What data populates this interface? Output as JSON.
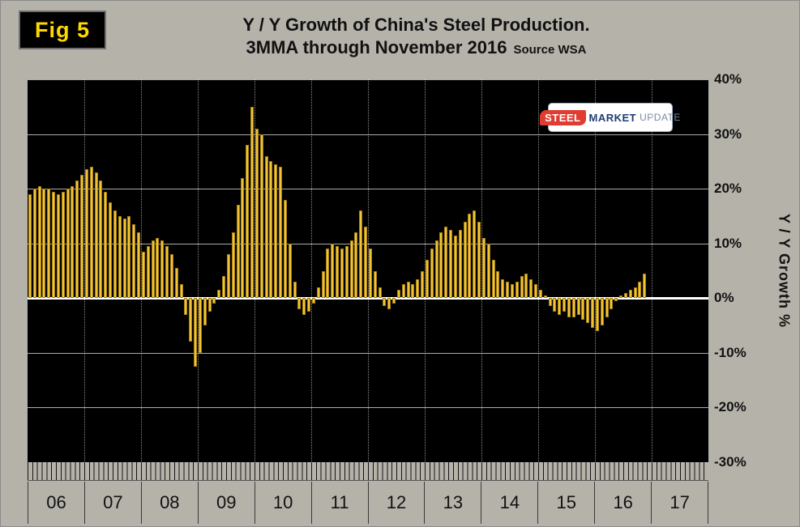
{
  "fig_label": "Fig 5",
  "title": {
    "line1": "Y / Y Growth of China's Steel Production.",
    "line2": "3MMA through November 2016",
    "source": "Source WSA"
  },
  "logo": {
    "steel": "STEEL",
    "market": "MARKET",
    "update": "UPDATE"
  },
  "chart_data": {
    "type": "bar",
    "title": "Y / Y Growth of China's Steel Production.",
    "subtitle": "3MMA through November 2016",
    "source": "Source WSA",
    "ylabel": "Y / Y Growth %",
    "ylim": [
      -30,
      40
    ],
    "ytick_step": 10,
    "yticks": [
      "40%",
      "30%",
      "20%",
      "10%",
      "0%",
      "-10%",
      "-20%",
      "-30%"
    ],
    "x_years": [
      "06",
      "07",
      "08",
      "09",
      "10",
      "11",
      "12",
      "13",
      "14",
      "15",
      "16",
      "17"
    ],
    "start": "2006-01",
    "end": "2016-11",
    "legend": "none",
    "grid": "on",
    "bar_color": "#f2c435",
    "plot_bg": "#000000",
    "values": [
      19,
      20,
      20.5,
      20,
      20,
      19.5,
      19,
      19.5,
      20,
      20.5,
      21.5,
      22.5,
      23.5,
      24,
      23,
      21.5,
      19.5,
      17.5,
      16,
      15,
      14.5,
      15,
      13.5,
      12,
      8.5,
      9.5,
      10.5,
      11,
      10.5,
      9.5,
      8,
      5.5,
      2.5,
      -3,
      -8,
      -12.5,
      -10,
      -5,
      -2.5,
      -1,
      1.5,
      4,
      8,
      12,
      17,
      22,
      28,
      35,
      31,
      30,
      26,
      25,
      24.5,
      24,
      18,
      10,
      3,
      -2,
      -3,
      -2.5,
      -1,
      2,
      5,
      9,
      10,
      9.5,
      9,
      9.5,
      10.5,
      12,
      16,
      13,
      9,
      5,
      2,
      -1.5,
      -2,
      -1,
      1.5,
      2.5,
      3,
      2.5,
      3.5,
      5,
      7,
      9,
      10.5,
      12,
      13,
      12.5,
      11.5,
      12.5,
      14,
      15.5,
      16,
      14,
      11,
      10,
      7,
      5,
      3.5,
      3,
      2.5,
      3,
      4,
      4.5,
      3.5,
      2.5,
      1.5,
      0.5,
      -1.5,
      -2.5,
      -3,
      -2.5,
      -3.5,
      -3.5,
      -3,
      -4,
      -4.5,
      -5.5,
      -6,
      -5,
      -3.5,
      -2,
      -0.5,
      0.5,
      1,
      1.5,
      2,
      3,
      4.5
    ]
  }
}
